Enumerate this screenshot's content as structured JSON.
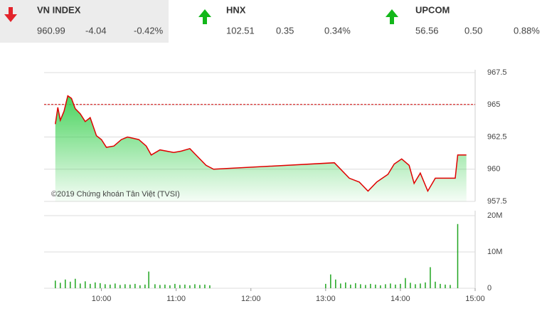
{
  "header": {
    "indices": [
      {
        "name": "VN INDEX",
        "value": "960.99",
        "change": "-4.04",
        "percent": "-0.42%",
        "direction": "down"
      },
      {
        "name": "HNX",
        "value": "102.51",
        "change": "0.35",
        "percent": "0.34%",
        "direction": "up"
      },
      {
        "name": "UPCOM",
        "value": "56.56",
        "change": "0.50",
        "percent": "0.88%",
        "direction": "up"
      }
    ]
  },
  "chart_data": [
    {
      "type": "line",
      "color": "#e00000",
      "fill": "#3fd154",
      "annotation": "©2019 Chứng khoán Tân Việt (TVSI)",
      "reference": 965.03,
      "reference_color": "#d40000",
      "x": [
        563,
        565,
        567,
        570,
        573,
        576,
        579,
        583,
        587,
        591,
        596,
        600,
        604,
        610,
        616,
        621,
        630,
        636,
        640,
        647,
        658,
        664,
        671,
        678,
        684,
        690,
        787,
        799,
        807,
        814,
        821,
        830,
        835,
        841,
        847,
        851,
        856,
        862,
        868,
        884,
        886,
        893
      ],
      "values": [
        963.5,
        964.8,
        963.8,
        964.5,
        965.7,
        965.5,
        964.7,
        964.3,
        963.7,
        964.0,
        962.6,
        962.3,
        961.7,
        961.8,
        962.3,
        962.5,
        962.3,
        961.8,
        961.1,
        961.5,
        961.3,
        961.4,
        961.6,
        960.9,
        960.3,
        960.0,
        960.5,
        959.3,
        959.0,
        958.3,
        959.0,
        959.6,
        960.4,
        960.8,
        960.3,
        958.9,
        959.7,
        958.3,
        959.3,
        959.3,
        961.1,
        961.1
      ],
      "xlim": [
        554,
        900
      ],
      "ylim": [
        957.5,
        967.5
      ],
      "yticks": [
        957.5,
        960,
        962.5,
        965,
        967.5
      ],
      "grid": true
    },
    {
      "type": "bar",
      "color": "#1fa51f",
      "x": [
        563,
        567,
        571,
        575,
        579,
        583,
        587,
        591,
        595,
        599,
        603,
        607,
        611,
        615,
        619,
        623,
        627,
        631,
        635,
        638,
        643,
        647,
        651,
        655,
        659,
        663,
        667,
        671,
        675,
        679,
        683,
        687,
        780,
        784,
        788,
        792,
        796,
        800,
        804,
        808,
        812,
        816,
        820,
        824,
        828,
        832,
        836,
        840,
        844,
        848,
        852,
        856,
        860,
        864,
        868,
        872,
        876,
        880,
        886
      ],
      "values": [
        2100000,
        1500000,
        2400000,
        1800000,
        2600000,
        1300000,
        1900000,
        1200000,
        1600000,
        1400000,
        1100000,
        1000000,
        1300000,
        900000,
        1100000,
        1000000,
        1200000,
        800000,
        1000000,
        4600000,
        1100000,
        900000,
        1000000,
        800000,
        1200000,
        900000,
        1000000,
        800000,
        1100000,
        900000,
        1000000,
        800000,
        1200000,
        3800000,
        2400000,
        1300000,
        1600000,
        1000000,
        1400000,
        1100000,
        900000,
        1200000,
        1000000,
        800000,
        1100000,
        1300000,
        1000000,
        1200000,
        2800000,
        1500000,
        1100000,
        1300000,
        1600000,
        5800000,
        1800000,
        1200000,
        1000000,
        900000,
        17700000
      ],
      "xlim": [
        554,
        900
      ],
      "ylim": [
        0,
        20600000
      ],
      "yticks": [
        0,
        {
          "value": 10000000,
          "label": "10M"
        },
        {
          "value": 20000000,
          "label": "20M"
        }
      ],
      "xticks": [
        {
          "value": 600,
          "label": "10:00"
        },
        {
          "value": 660,
          "label": "11:00"
        },
        {
          "value": 720,
          "label": "12:00"
        },
        {
          "value": 780,
          "label": "13:00"
        },
        {
          "value": 840,
          "label": "14:00"
        },
        {
          "value": 900,
          "label": "15:00"
        }
      ],
      "grid": true
    }
  ]
}
